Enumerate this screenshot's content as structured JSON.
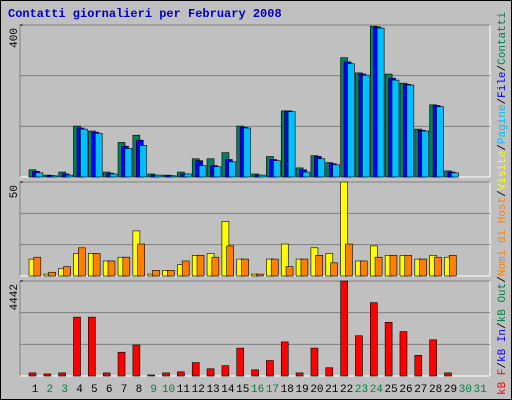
{
  "title": "Contatti giornalieri per February 2008",
  "legend_separator": "/",
  "days": [
    "1",
    "2",
    "3",
    "4",
    "5",
    "6",
    "7",
    "8",
    "9",
    "10",
    "11",
    "12",
    "13",
    "14",
    "15",
    "16",
    "17",
    "18",
    "19",
    "20",
    "21",
    "22",
    "23",
    "24",
    "25",
    "26",
    "27",
    "28",
    "29",
    "30",
    "31"
  ],
  "day_colors": [
    "#000000",
    "#008040",
    "#008040",
    "#000000",
    "#000000",
    "#000000",
    "#000000",
    "#000000",
    "#008040",
    "#008040",
    "#000000",
    "#000000",
    "#000000",
    "#000000",
    "#000000",
    "#008040",
    "#008040",
    "#000000",
    "#000000",
    "#000000",
    "#000000",
    "#000000",
    "#008040",
    "#008040",
    "#000000",
    "#000000",
    "#000000",
    "#000000",
    "#000000",
    "#008040",
    "#008040"
  ],
  "chart_data": [
    {
      "type": "bar",
      "ylim": [
        0,
        400
      ],
      "yticks": [
        400
      ],
      "series": [
        {
          "name": "Contatti",
          "color": "#00805c",
          "values": [
            19,
            5,
            13,
            134,
            121,
            13,
            91,
            110,
            8,
            5,
            13,
            48,
            48,
            64,
            134,
            8,
            54,
            174,
            24,
            56,
            38,
            314,
            274,
            397,
            271,
            247,
            126,
            190,
            16,
            null,
            null
          ]
        },
        {
          "name": "File",
          "color": "#0000ff",
          "values": [
            15,
            4,
            8,
            129,
            118,
            10,
            81,
            97,
            5,
            4,
            8,
            43,
            30,
            46,
            131,
            5,
            46,
            174,
            19,
            54,
            35,
            303,
            271,
            395,
            260,
            244,
            123,
            188,
            13,
            null,
            null
          ]
        },
        {
          "name": "Pagine",
          "color": "#00c0ff",
          "values": [
            11,
            3,
            5,
            126,
            115,
            8,
            75,
            83,
            5,
            3,
            8,
            30,
            27,
            40,
            129,
            5,
            43,
            172,
            13,
            48,
            32,
            298,
            268,
            392,
            255,
            242,
            121,
            185,
            11,
            null,
            null
          ]
        }
      ]
    },
    {
      "type": "bar",
      "ylim": [
        0,
        50
      ],
      "yticks": [
        50
      ],
      "series": [
        {
          "name": "Visite",
          "color": "#ffff00",
          "values": [
            9,
            1,
            4,
            12,
            12,
            8,
            10,
            24,
            1,
            3,
            6,
            11,
            12,
            29,
            9,
            1,
            9,
            17,
            9,
            15,
            12,
            50,
            8,
            16,
            11,
            11,
            9,
            11,
            10,
            null,
            null
          ]
        },
        {
          "name": "Nomi di Host",
          "color": "#ff8000",
          "values": [
            10,
            2,
            5,
            15,
            12,
            8,
            10,
            17,
            3,
            3,
            8,
            11,
            10,
            16,
            9,
            1,
            9,
            5,
            9,
            11,
            7,
            17,
            8,
            10,
            11,
            11,
            9,
            10,
            11,
            null,
            null
          ]
        }
      ]
    },
    {
      "type": "bar",
      "ylim": [
        0,
        4442
      ],
      "yticks": [
        4442
      ],
      "series": [
        {
          "name": "kB F",
          "color": "#ff0000",
          "values": [
            145,
            97,
            145,
            2752,
            2752,
            145,
            1111,
            1449,
            48,
            145,
            193,
            628,
            338,
            483,
            1304,
            290,
            725,
            1594,
            145,
            1304,
            386,
            4442,
            1883,
            3430,
            2512,
            2077,
            966,
            1690,
            145,
            null,
            null
          ]
        },
        {
          "name": "kB In",
          "color": "#0000ff",
          "values": [
            0,
            0,
            0,
            0,
            0,
            0,
            0,
            0,
            0,
            0,
            0,
            0,
            0,
            0,
            0,
            0,
            0,
            0,
            0,
            0,
            0,
            0,
            0,
            0,
            0,
            0,
            0,
            0,
            0,
            null,
            null
          ]
        },
        {
          "name": "kB Out",
          "color": "#008040",
          "values": [
            0,
            0,
            0,
            0,
            0,
            0,
            0,
            0,
            0,
            0,
            0,
            0,
            0,
            0,
            0,
            0,
            0,
            0,
            0,
            0,
            0,
            0,
            0,
            0,
            0,
            0,
            0,
            0,
            0,
            null,
            null
          ]
        }
      ]
    }
  ]
}
